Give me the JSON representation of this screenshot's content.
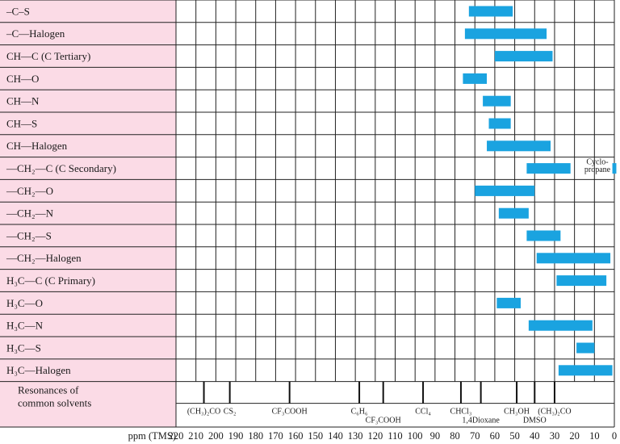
{
  "chart_data": {
    "type": "range-bar",
    "title": "",
    "xlabel": "ppm (TMS)",
    "xlim": [
      220,
      0
    ],
    "x_ticks": [
      220,
      210,
      200,
      190,
      180,
      170,
      160,
      150,
      140,
      130,
      120,
      110,
      100,
      90,
      80,
      70,
      60,
      50,
      40,
      30,
      20,
      10,
      0
    ],
    "bar_color": "#1aa3e0",
    "row_color": "#fbdbe6",
    "rows": [
      {
        "label": "–C–S",
        "range": [
          73,
          51
        ]
      },
      {
        "label": "–C—Halogen",
        "range": [
          75,
          34
        ]
      },
      {
        "label": "CH—C (C Tertiary)",
        "range": [
          60,
          31
        ]
      },
      {
        "label": "CH—O",
        "range": [
          76,
          64
        ]
      },
      {
        "label": "CH—N",
        "range": [
          66,
          52
        ]
      },
      {
        "label": "CH—S",
        "range": [
          63,
          52
        ]
      },
      {
        "label": "CH—Halogen",
        "range": [
          64,
          32
        ]
      },
      {
        "label": "—CH₂—C (C Secondary)",
        "range": [
          44,
          22
        ]
      },
      {
        "label": "—CH₂—O",
        "range": [
          70,
          40
        ]
      },
      {
        "label": "—CH₂—N",
        "range": [
          58,
          43
        ]
      },
      {
        "label": "—CH₂—S",
        "range": [
          44,
          27
        ]
      },
      {
        "label": "—CH₂—Halogen",
        "range": [
          39,
          2
        ]
      },
      {
        "label": "H₃C—C (C Primary)",
        "range": [
          29,
          4
        ]
      },
      {
        "label": "H₃C—O",
        "range": [
          59,
          47
        ]
      },
      {
        "label": "H₃C—N",
        "range": [
          43,
          11
        ]
      },
      {
        "label": "H₃C—S",
        "range": [
          19,
          10
        ]
      },
      {
        "label": "H₃C—Halogen",
        "range": [
          28,
          1
        ]
      }
    ],
    "annotations": [
      {
        "text": "Cyclo-",
        "row": 7
      },
      {
        "text": "propane",
        "row": 7
      }
    ],
    "extra_bars": [
      {
        "row": 7,
        "range": [
          1,
          -1
        ]
      }
    ],
    "solvents_label_line1": "Resonances of",
    "solvents_label_line2": "common solvents",
    "solvents": [
      {
        "name": "(CH₃)₂CO",
        "ppm": 206,
        "level": "top"
      },
      {
        "name": "CS₂",
        "ppm": 193,
        "level": "top"
      },
      {
        "name": "CF₃COOH",
        "ppm": 163,
        "level": "top"
      },
      {
        "name": "C₆H₆",
        "ppm": 128,
        "level": "top"
      },
      {
        "name": "CF₃COOH",
        "ppm": 116,
        "level": "bottom"
      },
      {
        "name": "CCl₄",
        "ppm": 96,
        "level": "top"
      },
      {
        "name": "CHCl₃",
        "ppm": 77,
        "level": "top"
      },
      {
        "name": "1,4Dioxane",
        "ppm": 67,
        "level": "bottom"
      },
      {
        "name": "CH₃OH",
        "ppm": 49,
        "level": "top"
      },
      {
        "name": "DMSO",
        "ppm": 40,
        "level": "bottom"
      },
      {
        "name": "(CH₃)₂CO",
        "ppm": 30,
        "level": "top"
      }
    ]
  }
}
